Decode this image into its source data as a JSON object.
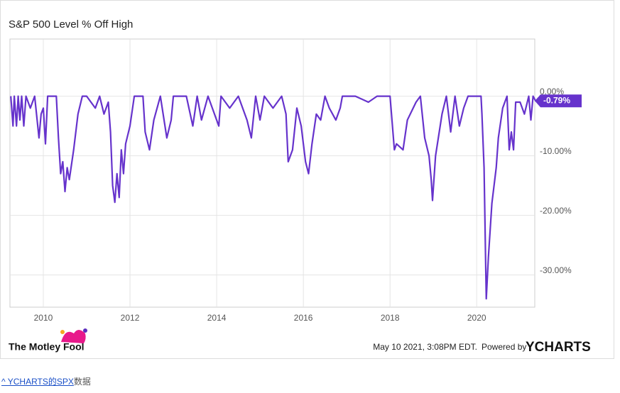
{
  "chart_data": {
    "type": "line",
    "title": "S&P 500 Level % Off High",
    "x": [
      2009.25,
      2009.3,
      2009.33,
      2009.38,
      2009.42,
      2009.46,
      2009.5,
      2009.55,
      2009.6,
      2009.7,
      2009.8,
      2009.9,
      2009.95,
      2010.0,
      2010.05,
      2010.1,
      2010.2,
      2010.3,
      2010.35,
      2010.4,
      2010.45,
      2010.5,
      2010.55,
      2010.6,
      2010.7,
      2010.8,
      2010.9,
      2011.0,
      2011.2,
      2011.3,
      2011.4,
      2011.5,
      2011.55,
      2011.6,
      2011.65,
      2011.7,
      2011.75,
      2011.8,
      2011.85,
      2011.9,
      2012.0,
      2012.1,
      2012.3,
      2012.35,
      2012.45,
      2012.55,
      2012.7,
      2012.85,
      2012.95,
      2013.0,
      2013.3,
      2013.45,
      2013.55,
      2013.65,
      2013.8,
      2014.05,
      2014.1,
      2014.3,
      2014.5,
      2014.7,
      2014.8,
      2014.9,
      2015.0,
      2015.1,
      2015.3,
      2015.5,
      2015.6,
      2015.65,
      2015.75,
      2015.85,
      2015.95,
      2016.05,
      2016.12,
      2016.2,
      2016.3,
      2016.4,
      2016.5,
      2016.6,
      2016.75,
      2016.85,
      2016.9,
      2017.2,
      2017.5,
      2017.7,
      2018.0,
      2018.1,
      2018.15,
      2018.3,
      2018.4,
      2018.6,
      2018.7,
      2018.8,
      2018.9,
      2018.95,
      2018.98,
      2019.05,
      2019.2,
      2019.3,
      2019.4,
      2019.5,
      2019.6,
      2019.7,
      2019.8,
      2020.1,
      2020.12,
      2020.17,
      2020.2,
      2020.22,
      2020.27,
      2020.35,
      2020.45,
      2020.5,
      2020.6,
      2020.7,
      2020.75,
      2020.8,
      2020.85,
      2020.9,
      2021.0,
      2021.1,
      2021.2,
      2021.25,
      2021.3,
      2021.36
    ],
    "series": [
      {
        "name": "S&P 500 Level % Off High",
        "color": "#6633cc",
        "values": [
          0,
          -5,
          0,
          -5,
          0,
          -4,
          0,
          -5,
          0,
          -2,
          0,
          -7,
          -3,
          -2,
          -8,
          0,
          0,
          0,
          -7,
          -13,
          -11,
          -16,
          -12,
          -14,
          -9,
          -3,
          0,
          0,
          -2,
          0,
          -3,
          -1,
          -6,
          -15,
          -17.8,
          -13,
          -17,
          -9,
          -13,
          -8,
          -5,
          0,
          0,
          -6,
          -9,
          -4,
          0,
          -7,
          -4,
          0,
          0,
          -5,
          0,
          -4,
          0,
          -5,
          0,
          -2,
          0,
          -4,
          -7,
          0,
          -4,
          0,
          -2,
          0,
          -3,
          -11,
          -9,
          -2,
          -5,
          -11,
          -13,
          -8,
          -3,
          -4,
          0,
          -2,
          -4,
          -2,
          0,
          0,
          -1,
          0,
          0,
          -9,
          -8,
          -9,
          -4,
          -1,
          0,
          -7,
          -10,
          -14,
          -17.5,
          -10,
          -3,
          0,
          -6,
          0,
          -5,
          -2,
          0,
          0,
          -3,
          -12,
          -25,
          -34,
          -27,
          -18,
          -12,
          -7,
          -2,
          0,
          -9,
          -6,
          -9,
          -1,
          -1,
          -3,
          0,
          -4,
          0,
          -0.79
        ]
      }
    ],
    "xlim": [
      2009.23,
      2021.34
    ],
    "ylim": [
      -35.4,
      9.6
    ],
    "xticks": [
      2010,
      2012,
      2014,
      2016,
      2018,
      2020
    ],
    "yticks": [
      {
        "value": 0,
        "label": "0.00%"
      },
      {
        "value": -10,
        "label": "-10.00%"
      },
      {
        "value": -20,
        "label": "-20.00%"
      },
      {
        "value": -30,
        "label": "-30.00%"
      }
    ],
    "grid": true,
    "callout": {
      "value": -0.79,
      "label": "-0.79%"
    }
  },
  "footer": {
    "brand": "The Motley Fool",
    "timestamp": "May 10 2021, 3:08PM EDT.",
    "powered_by": "Powered by",
    "provider": "YCHARTS"
  },
  "link": {
    "text": "^ YCHARTS的SPX",
    "suffix": "数据"
  }
}
